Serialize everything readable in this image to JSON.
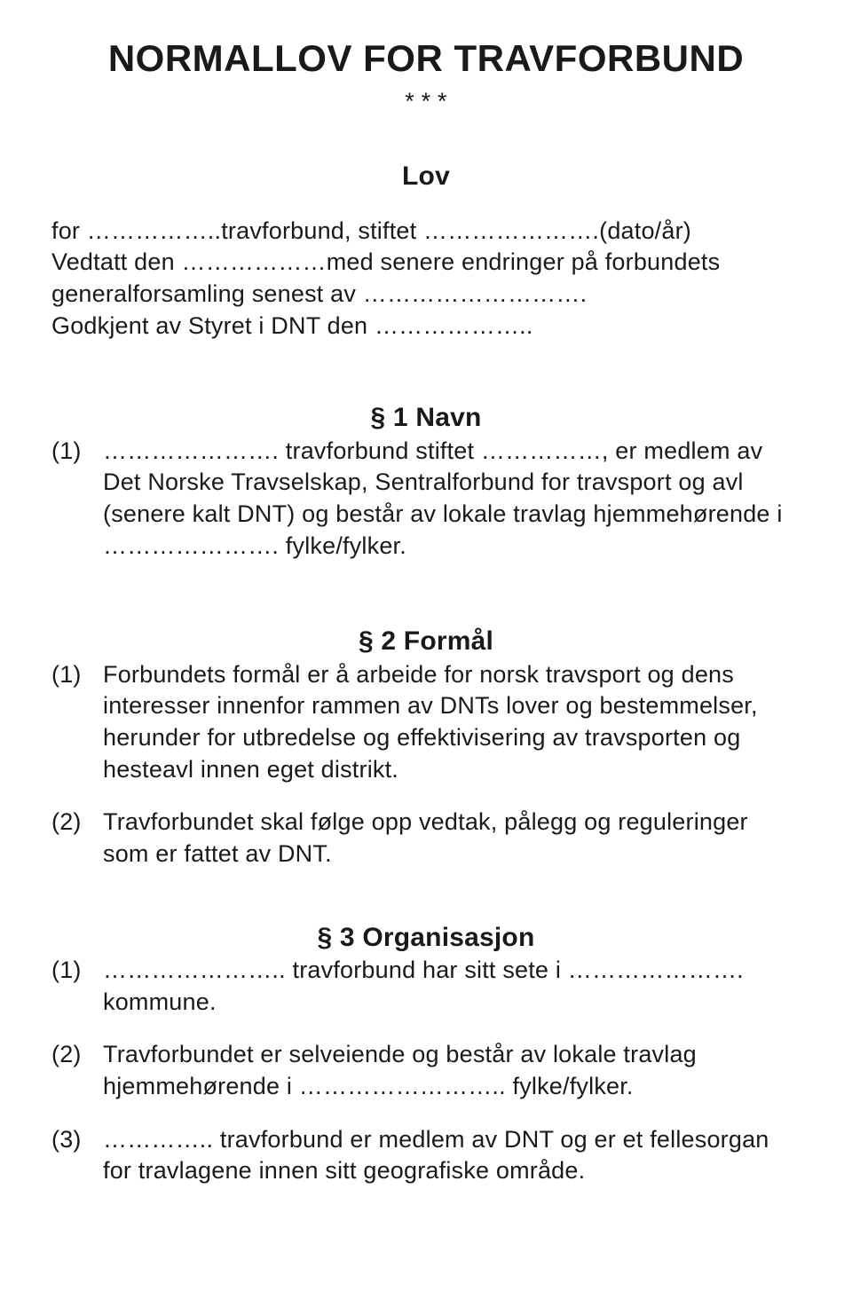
{
  "title": "NORMALLOV FOR TRAVFORBUND",
  "stars": "* * *",
  "subtitle": "Lov",
  "intro_line1": "for ……………..travforbund, stiftet ………………….(dato/år)",
  "intro_line2": "Vedtatt den ………………med senere endringer på forbundets generalforsamling senest av ……………………….",
  "intro_line3": "Godkjent av Styret i DNT den ………………..",
  "sec1_head": "§ 1 Navn",
  "sec1_num1": "(1)",
  "sec1_body1": "…………………. travforbund stiftet ……………, er medlem av Det Norske Travselskap, Sentralforbund for travsport og avl (senere kalt DNT) og består av lokale travlag hjemmehørende i …………………. fylke/fylker.",
  "sec2_head": "§ 2 Formål",
  "sec2_num1": "(1)",
  "sec2_body1": "Forbundets formål er å arbeide for norsk travsport og dens interesser innenfor rammen av DNTs lover og bestemmelser, herunder for utbredelse og effektivisering av travsporten og hesteavl innen eget distrikt.",
  "sec2_num2": "(2)",
  "sec2_body2": "Travforbundet skal følge opp vedtak, pålegg og reguleringer som er fattet av DNT.",
  "sec3_head": "§ 3 Organisasjon",
  "sec3_num1": "(1)",
  "sec3_body1": "………………….. travforbund har sitt sete i …………………. kommune.",
  "sec3_num2": "(2)",
  "sec3_body2": "Travforbundet er selveiende og består av lokale travlag hjemmehørende i …………………….. fylke/fylker.",
  "sec3_num3": "(3)",
  "sec3_body3": "………….. travforbund er medlem av DNT og er et fellesorgan for travlagene innen sitt geografiske område."
}
